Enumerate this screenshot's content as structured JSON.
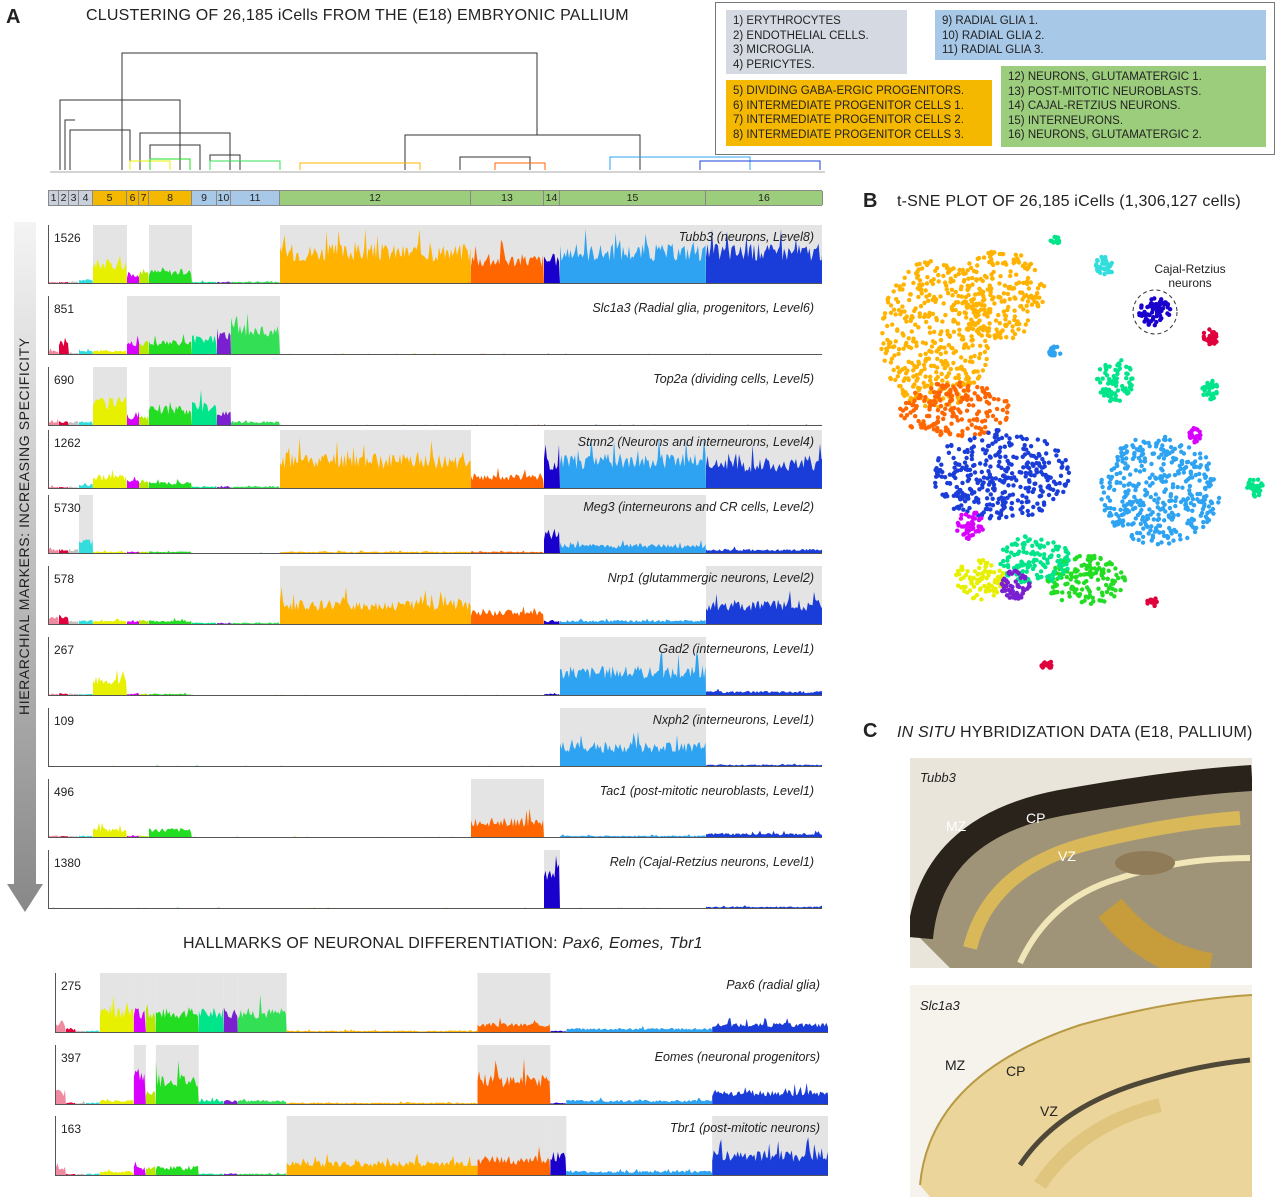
{
  "panel_labels": {
    "a": "A",
    "b": "B",
    "c": "C"
  },
  "panel_a": {
    "title": "CLUSTERING OF 26,185 iCells FROM THE (E18) EMBRYONIC PALLIUM",
    "side_label": "HIERARCHIAL MARKERS: INCREASING SPECIFICITY",
    "hallmarks_title_prefix": "HALLMARKS OF NEURONAL DIFFERENTIATION: ",
    "hallmarks_title_genes": "Pax6, Eomes, Tbr1"
  },
  "legend": {
    "group1": [
      "1) ERYTHROCYTES",
      "2) ENDOTHELIAL CELLS.",
      "3) MICROGLIA.",
      "4) PERICYTES."
    ],
    "group2": [
      "9) RADIAL GLIA 1.",
      "10) RADIAL GLIA 2.",
      "11) RADIAL GLIA 3."
    ],
    "group3": [
      "5) DIVIDING GABA-ERGIC PROGENITORS.",
      "6) INTERMEDIATE PROGENITOR CELLS 1.",
      "7) INTERMEDIATE PROGENITOR CELLS 2.",
      "8) INTERMEDIATE PROGENITOR CELLS 3."
    ],
    "group4": [
      "12) NEURONS, GLUTAMATERGIC  1.",
      "13) POST-MITOTIC NEUROBLASTS.",
      "14) CAJAL-RETZIUS NEURONS.",
      "15) INTERNEURONS.",
      "16) NEURONS, GLUTAMATERGIC 2."
    ],
    "colors": {
      "grey": "#d4d9e2",
      "blue": "#a8c8e8",
      "orange": "#f5b800",
      "green": "#9ccd7c"
    }
  },
  "cluster_bar": {
    "labels": [
      "1",
      "2",
      "3",
      "4",
      "5",
      "6",
      "7",
      "8",
      "9",
      "10",
      "11",
      "12",
      "13",
      "14",
      "15",
      "16"
    ],
    "colors": [
      "#c9d0db",
      "#c9d0db",
      "#c9d0db",
      "#c9d0db",
      "#f5b800",
      "#f5b800",
      "#f5b800",
      "#f5b800",
      "#a8c8e8",
      "#a8c8e8",
      "#a8c8e8",
      "#9ccd7c",
      "#9ccd7c",
      "#9ccd7c",
      "#9ccd7c",
      "#9ccd7c"
    ]
  },
  "chart_data": {
    "type": "area",
    "clusters": [
      "1",
      "2",
      "3",
      "4",
      "5",
      "6",
      "7",
      "8",
      "9",
      "10",
      "11",
      "12",
      "13",
      "14",
      "15",
      "16"
    ],
    "hierarchical_markers": [
      {
        "name": "Tubb3 (neurons, Level8)",
        "max": "1526",
        "highlighted_clusters": [
          "5",
          "8",
          "12",
          "13",
          "14",
          "15",
          "16"
        ],
        "levels": [
          0.05,
          0.05,
          0.05,
          0.1,
          0.5,
          0.2,
          0.3,
          0.3,
          0.05,
          0.05,
          0.05,
          0.8,
          0.6,
          0.6,
          0.8,
          0.8
        ]
      },
      {
        "name": "Slc1a3 (Radial glia, progenitors, Level6)",
        "max": "851",
        "highlighted_clusters": [
          "6",
          "7",
          "8",
          "9",
          "10",
          "11"
        ],
        "levels": [
          0.1,
          0.3,
          0.05,
          0.1,
          0.1,
          0.3,
          0.3,
          0.3,
          0.4,
          0.5,
          0.6,
          0.02,
          0.02,
          0.02,
          0.02,
          0.02
        ]
      },
      {
        "name": "Top2a (dividing cells, Level5)",
        "max": "690",
        "highlighted_clusters": [
          "5",
          "8",
          "9",
          "10"
        ],
        "levels": [
          0.1,
          0.1,
          0.1,
          0.1,
          0.6,
          0.2,
          0.2,
          0.4,
          0.5,
          0.3,
          0.1,
          0.02,
          0.02,
          0.02,
          0.02,
          0.02
        ]
      },
      {
        "name": "Stmn2 (Neurons and interneurons, Level4)",
        "max": "1262",
        "highlighted_clusters": [
          "12",
          "14",
          "15",
          "16"
        ],
        "levels": [
          0.05,
          0.05,
          0.05,
          0.1,
          0.3,
          0.2,
          0.2,
          0.15,
          0.05,
          0.05,
          0.05,
          0.7,
          0.3,
          0.6,
          0.7,
          0.6
        ]
      },
      {
        "name": "Meg3 (interneurons and CR cells, Level2)",
        "max": "5730",
        "highlighted_clusters": [
          "4",
          "14",
          "15"
        ],
        "levels": [
          0.1,
          0.1,
          0.1,
          0.3,
          0.05,
          0.05,
          0.05,
          0.05,
          0.02,
          0.02,
          0.02,
          0.05,
          0.05,
          0.5,
          0.2,
          0.1
        ]
      },
      {
        "name": "Nrp1 (glutammergic neurons, Level2)",
        "max": "578",
        "highlighted_clusters": [
          "12",
          "16"
        ],
        "levels": [
          0.2,
          0.2,
          0.1,
          0.1,
          0.1,
          0.1,
          0.1,
          0.1,
          0.05,
          0.05,
          0.05,
          0.5,
          0.3,
          0.1,
          0.1,
          0.5
        ]
      },
      {
        "name": "Gad2 (interneurons, Level1)",
        "max": "267",
        "highlighted_clusters": [
          "15"
        ],
        "levels": [
          0.05,
          0.05,
          0.05,
          0.05,
          0.4,
          0.05,
          0.05,
          0.05,
          0.02,
          0.02,
          0.02,
          0.02,
          0.02,
          0.05,
          0.6,
          0.1
        ]
      },
      {
        "name": "Nxph2 (interneurons, Level1)",
        "max": "109",
        "highlighted_clusters": [
          "15"
        ],
        "levels": [
          0.02,
          0.02,
          0.02,
          0.02,
          0.02,
          0.02,
          0.02,
          0.02,
          0.02,
          0.02,
          0.02,
          0.02,
          0.02,
          0.02,
          0.5,
          0.05
        ]
      },
      {
        "name": "Tac1 (post-mitotic neuroblasts, Level1)",
        "max": "496",
        "highlighted_clusters": [
          "13"
        ],
        "levels": [
          0.05,
          0.05,
          0.05,
          0.05,
          0.2,
          0.05,
          0.05,
          0.2,
          0.02,
          0.02,
          0.02,
          0.02,
          0.4,
          0.02,
          0.05,
          0.1
        ]
      },
      {
        "name": "Reln (Cajal-Retzius neurons, Level1)",
        "max": "1380",
        "highlighted_clusters": [
          "14"
        ],
        "levels": [
          0.02,
          0.02,
          0.02,
          0.02,
          0.02,
          0.02,
          0.02,
          0.02,
          0.02,
          0.02,
          0.02,
          0.02,
          0.02,
          0.9,
          0.02,
          0.05
        ]
      }
    ],
    "hallmarks": [
      {
        "name": "Pax6 (radial glia)",
        "max": "275",
        "highlighted_clusters": [
          "5",
          "6",
          "7",
          "8",
          "9",
          "10",
          "11",
          "13"
        ],
        "levels": [
          0.2,
          0.1,
          0.05,
          0.05,
          0.5,
          0.5,
          0.5,
          0.5,
          0.5,
          0.5,
          0.5,
          0.05,
          0.2,
          0.05,
          0.1,
          0.2
        ]
      },
      {
        "name": "Eomes (neuronal progenitors)",
        "max": "397",
        "highlighted_clusters": [
          "6",
          "8",
          "13"
        ],
        "levels": [
          0.3,
          0.05,
          0.05,
          0.05,
          0.1,
          0.7,
          0.3,
          0.6,
          0.1,
          0.1,
          0.1,
          0.05,
          0.6,
          0.05,
          0.1,
          0.3
        ]
      },
      {
        "name": "Tbr1 (post-mitotic neurons)",
        "max": "163",
        "highlighted_clusters": [
          "12",
          "13",
          "14",
          "16"
        ],
        "levels": [
          0.2,
          0.05,
          0.05,
          0.05,
          0.1,
          0.2,
          0.2,
          0.2,
          0.05,
          0.05,
          0.05,
          0.3,
          0.4,
          0.5,
          0.1,
          0.5
        ]
      }
    ]
  },
  "panel_b": {
    "title": "t-SNE PLOT OF 26,185 iCells (1,306,127 cells)",
    "annotation": "Cajal-Retzius neurons"
  },
  "panel_c": {
    "title_italic": "IN SITU",
    "title_rest": " HYBRIDIZATION DATA (E18, PALLIUM)",
    "images": [
      {
        "gene": "Tubb3",
        "labels": {
          "mz": "MZ",
          "cp": "CP",
          "vz": "VZ"
        }
      },
      {
        "gene": "Slc1a3",
        "labels": {
          "mz": "MZ",
          "cp": "CP",
          "vz": "VZ"
        }
      }
    ]
  },
  "cluster_colors": [
    "#f08aa0",
    "#e0003c",
    "#c0c0c0",
    "#33dddd",
    "#e6f000",
    "#d800ff",
    "#b7e800",
    "#22dd22",
    "#00e58a",
    "#7a20d0",
    "#33e055",
    "#ffb300",
    "#ff6600",
    "#1a00cc",
    "#2ea3f2",
    "#1a3cd8"
  ]
}
